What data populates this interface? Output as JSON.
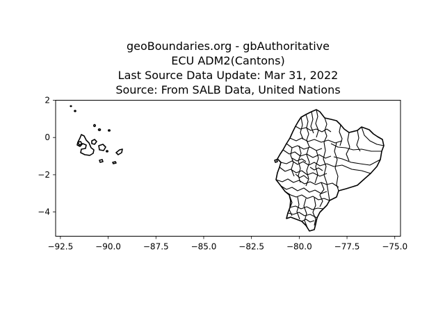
{
  "title_lines": [
    "geoBoundaries.org - gbAuthoritative",
    "ECU ADM2(Cantons)",
    "Last Source Data Update: Mar 31, 2022",
    "Source: From SALB Data, United Nations"
  ],
  "chart_data": {
    "type": "map",
    "xlim": [
      -92.75,
      -74.7
    ],
    "ylim": [
      -5.3,
      2.0
    ],
    "x_ticks": [
      -92.5,
      -90.0,
      -87.5,
      -85.0,
      -82.5,
      -80.0,
      -77.5,
      -75.0
    ],
    "x_tick_labels": [
      "−92.5",
      "−90.0",
      "−87.5",
      "−85.0",
      "−82.5",
      "−80.0",
      "−77.5",
      "−75.0"
    ],
    "y_ticks": [
      2,
      0,
      -2,
      -4
    ],
    "y_tick_labels": [
      "2",
      "0",
      "−2",
      "−4"
    ],
    "grid": false,
    "regions": [
      {
        "name": "galapagos-islands",
        "lon_range": [
          -92.0,
          -89.2
        ],
        "lat_range": [
          -1.5,
          1.7
        ]
      },
      {
        "name": "ecuador-mainland-cantons",
        "lon_range": [
          -81.1,
          -75.2
        ],
        "lat_range": [
          -5.0,
          1.5
        ]
      }
    ]
  }
}
